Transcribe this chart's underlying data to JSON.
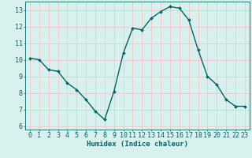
{
  "x": [
    0,
    1,
    2,
    3,
    4,
    5,
    6,
    7,
    8,
    9,
    10,
    11,
    12,
    13,
    14,
    15,
    16,
    17,
    18,
    19,
    20,
    21,
    22,
    23
  ],
  "y": [
    10.1,
    10.0,
    9.4,
    9.3,
    8.6,
    8.2,
    7.6,
    6.9,
    6.4,
    8.1,
    10.4,
    11.9,
    11.8,
    12.5,
    12.9,
    13.2,
    13.1,
    12.4,
    10.6,
    9.0,
    8.5,
    7.6,
    7.2,
    7.2
  ],
  "line_color": "#006666",
  "marker": "D",
  "marker_size": 2.0,
  "bg_color": "#d8f0ee",
  "grid_color": "#f0c8c8",
  "xlabel": "Humidex (Indice chaleur)",
  "xlim": [
    -0.5,
    23.5
  ],
  "ylim": [
    5.8,
    13.5
  ],
  "yticks": [
    6,
    7,
    8,
    9,
    10,
    11,
    12,
    13
  ],
  "xticks": [
    0,
    1,
    2,
    3,
    4,
    5,
    6,
    7,
    8,
    9,
    10,
    11,
    12,
    13,
    14,
    15,
    16,
    17,
    18,
    19,
    20,
    21,
    22,
    23
  ],
  "xlabel_fontsize": 6.5,
  "tick_fontsize": 6.0,
  "line_width": 1.0
}
